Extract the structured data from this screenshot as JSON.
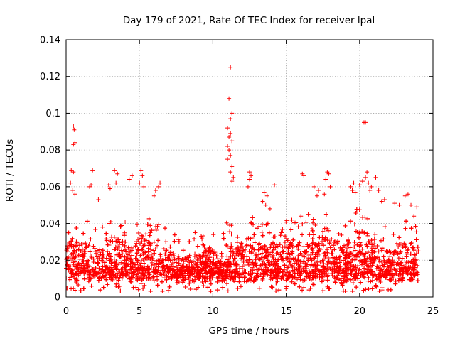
{
  "chart_data": {
    "type": "scatter",
    "title": "Day 179 of 2021, Rate Of TEC Index for receiver lpal",
    "xlabel": "GPS time / hours",
    "ylabel": "ROTI / TECUs",
    "xlim": [
      0,
      25
    ],
    "ylim": [
      0,
      0.14
    ],
    "xticks": [
      0,
      5,
      10,
      15,
      20,
      25
    ],
    "xtick_labels": [
      "0",
      "5",
      "10",
      "15",
      "20",
      "25"
    ],
    "yticks": [
      0,
      0.02,
      0.04,
      0.06,
      0.08,
      0.1,
      0.12,
      0.14
    ],
    "ytick_labels": [
      "0",
      "0.02",
      "0.04",
      "0.06",
      "0.08",
      "0.1",
      "0.12",
      "0.14"
    ],
    "grid": true,
    "marker": "+",
    "color": "#ff0000",
    "series": [
      {
        "name": "ROTI",
        "points": [
          [
            0.5,
            0.093
          ],
          [
            0.55,
            0.091
          ],
          [
            0.5,
            0.083
          ],
          [
            0.6,
            0.084
          ],
          [
            0.35,
            0.069
          ],
          [
            0.5,
            0.068
          ],
          [
            0.3,
            0.062
          ],
          [
            0.45,
            0.058
          ],
          [
            0.6,
            0.056
          ],
          [
            1.8,
            0.069
          ],
          [
            1.7,
            0.061
          ],
          [
            1.6,
            0.06
          ],
          [
            2.2,
            0.053
          ],
          [
            2.9,
            0.061
          ],
          [
            3.0,
            0.059
          ],
          [
            3.3,
            0.069
          ],
          [
            3.5,
            0.067
          ],
          [
            3.4,
            0.062
          ],
          [
            4.3,
            0.064
          ],
          [
            4.5,
            0.066
          ],
          [
            5.1,
            0.069
          ],
          [
            5.2,
            0.066
          ],
          [
            5.0,
            0.062
          ],
          [
            5.3,
            0.06
          ],
          [
            6.1,
            0.058
          ],
          [
            6.0,
            0.055
          ],
          [
            6.4,
            0.062
          ],
          [
            6.3,
            0.06
          ],
          [
            11.2,
            0.125
          ],
          [
            11.1,
            0.108
          ],
          [
            11.3,
            0.1
          ],
          [
            11.2,
            0.097
          ],
          [
            11.0,
            0.092
          ],
          [
            11.2,
            0.089
          ],
          [
            11.1,
            0.087
          ],
          [
            11.3,
            0.085
          ],
          [
            11.0,
            0.082
          ],
          [
            11.1,
            0.08
          ],
          [
            11.2,
            0.077
          ],
          [
            11.0,
            0.075
          ],
          [
            11.3,
            0.071
          ],
          [
            11.2,
            0.068
          ],
          [
            11.4,
            0.065
          ],
          [
            11.3,
            0.063
          ],
          [
            12.5,
            0.068
          ],
          [
            12.6,
            0.066
          ],
          [
            12.5,
            0.064
          ],
          [
            12.4,
            0.06
          ],
          [
            13.5,
            0.057
          ],
          [
            13.7,
            0.055
          ],
          [
            13.4,
            0.052
          ],
          [
            14.2,
            0.061
          ],
          [
            13.9,
            0.048
          ],
          [
            13.6,
            0.05
          ],
          [
            16.1,
            0.067
          ],
          [
            16.2,
            0.066
          ],
          [
            16.0,
            0.044
          ],
          [
            16.5,
            0.045
          ],
          [
            16.9,
            0.06
          ],
          [
            17.1,
            0.055
          ],
          [
            17.2,
            0.058
          ],
          [
            17.8,
            0.068
          ],
          [
            17.9,
            0.067
          ],
          [
            17.7,
            0.064
          ],
          [
            18.0,
            0.06
          ],
          [
            17.6,
            0.056
          ],
          [
            19.4,
            0.06
          ],
          [
            19.5,
            0.058
          ],
          [
            19.6,
            0.062
          ],
          [
            19.7,
            0.057
          ],
          [
            20.3,
            0.095
          ],
          [
            20.4,
            0.095
          ],
          [
            20.5,
            0.068
          ],
          [
            20.4,
            0.065
          ],
          [
            20.6,
            0.062
          ],
          [
            20.2,
            0.063
          ],
          [
            20.0,
            0.061
          ],
          [
            20.7,
            0.058
          ],
          [
            20.8,
            0.06
          ],
          [
            21.1,
            0.065
          ],
          [
            21.3,
            0.058
          ],
          [
            21.5,
            0.052
          ],
          [
            21.7,
            0.053
          ],
          [
            22.4,
            0.051
          ],
          [
            22.7,
            0.05
          ],
          [
            23.1,
            0.055
          ],
          [
            23.3,
            0.056
          ],
          [
            23.5,
            0.05
          ],
          [
            23.9,
            0.049
          ],
          [
            23.7,
            0.044
          ]
        ]
      }
    ],
    "density": {
      "x_range": [
        0,
        24
      ],
      "baseline_min": 0.003,
      "typical_max": 0.035,
      "profile": [
        [
          0.0,
          0.025
        ],
        [
          0.3,
          0.035
        ],
        [
          0.8,
          0.03
        ],
        [
          1.5,
          0.03
        ],
        [
          2.5,
          0.026
        ],
        [
          3.5,
          0.032
        ],
        [
          4.5,
          0.028
        ],
        [
          5.0,
          0.034
        ],
        [
          6.0,
          0.03
        ],
        [
          7.0,
          0.025
        ],
        [
          8.0,
          0.022
        ],
        [
          9.0,
          0.024
        ],
        [
          9.8,
          0.027
        ],
        [
          10.5,
          0.022
        ],
        [
          11.0,
          0.03
        ],
        [
          11.5,
          0.026
        ],
        [
          12.5,
          0.034
        ],
        [
          13.5,
          0.028
        ],
        [
          14.5,
          0.031
        ],
        [
          15.5,
          0.03
        ],
        [
          16.5,
          0.03
        ],
        [
          17.5,
          0.034
        ],
        [
          18.0,
          0.032
        ],
        [
          19.0,
          0.03
        ],
        [
          20.0,
          0.038
        ],
        [
          21.0,
          0.03
        ],
        [
          22.0,
          0.026
        ],
        [
          23.0,
          0.03
        ],
        [
          24.0,
          0.028
        ]
      ]
    }
  }
}
